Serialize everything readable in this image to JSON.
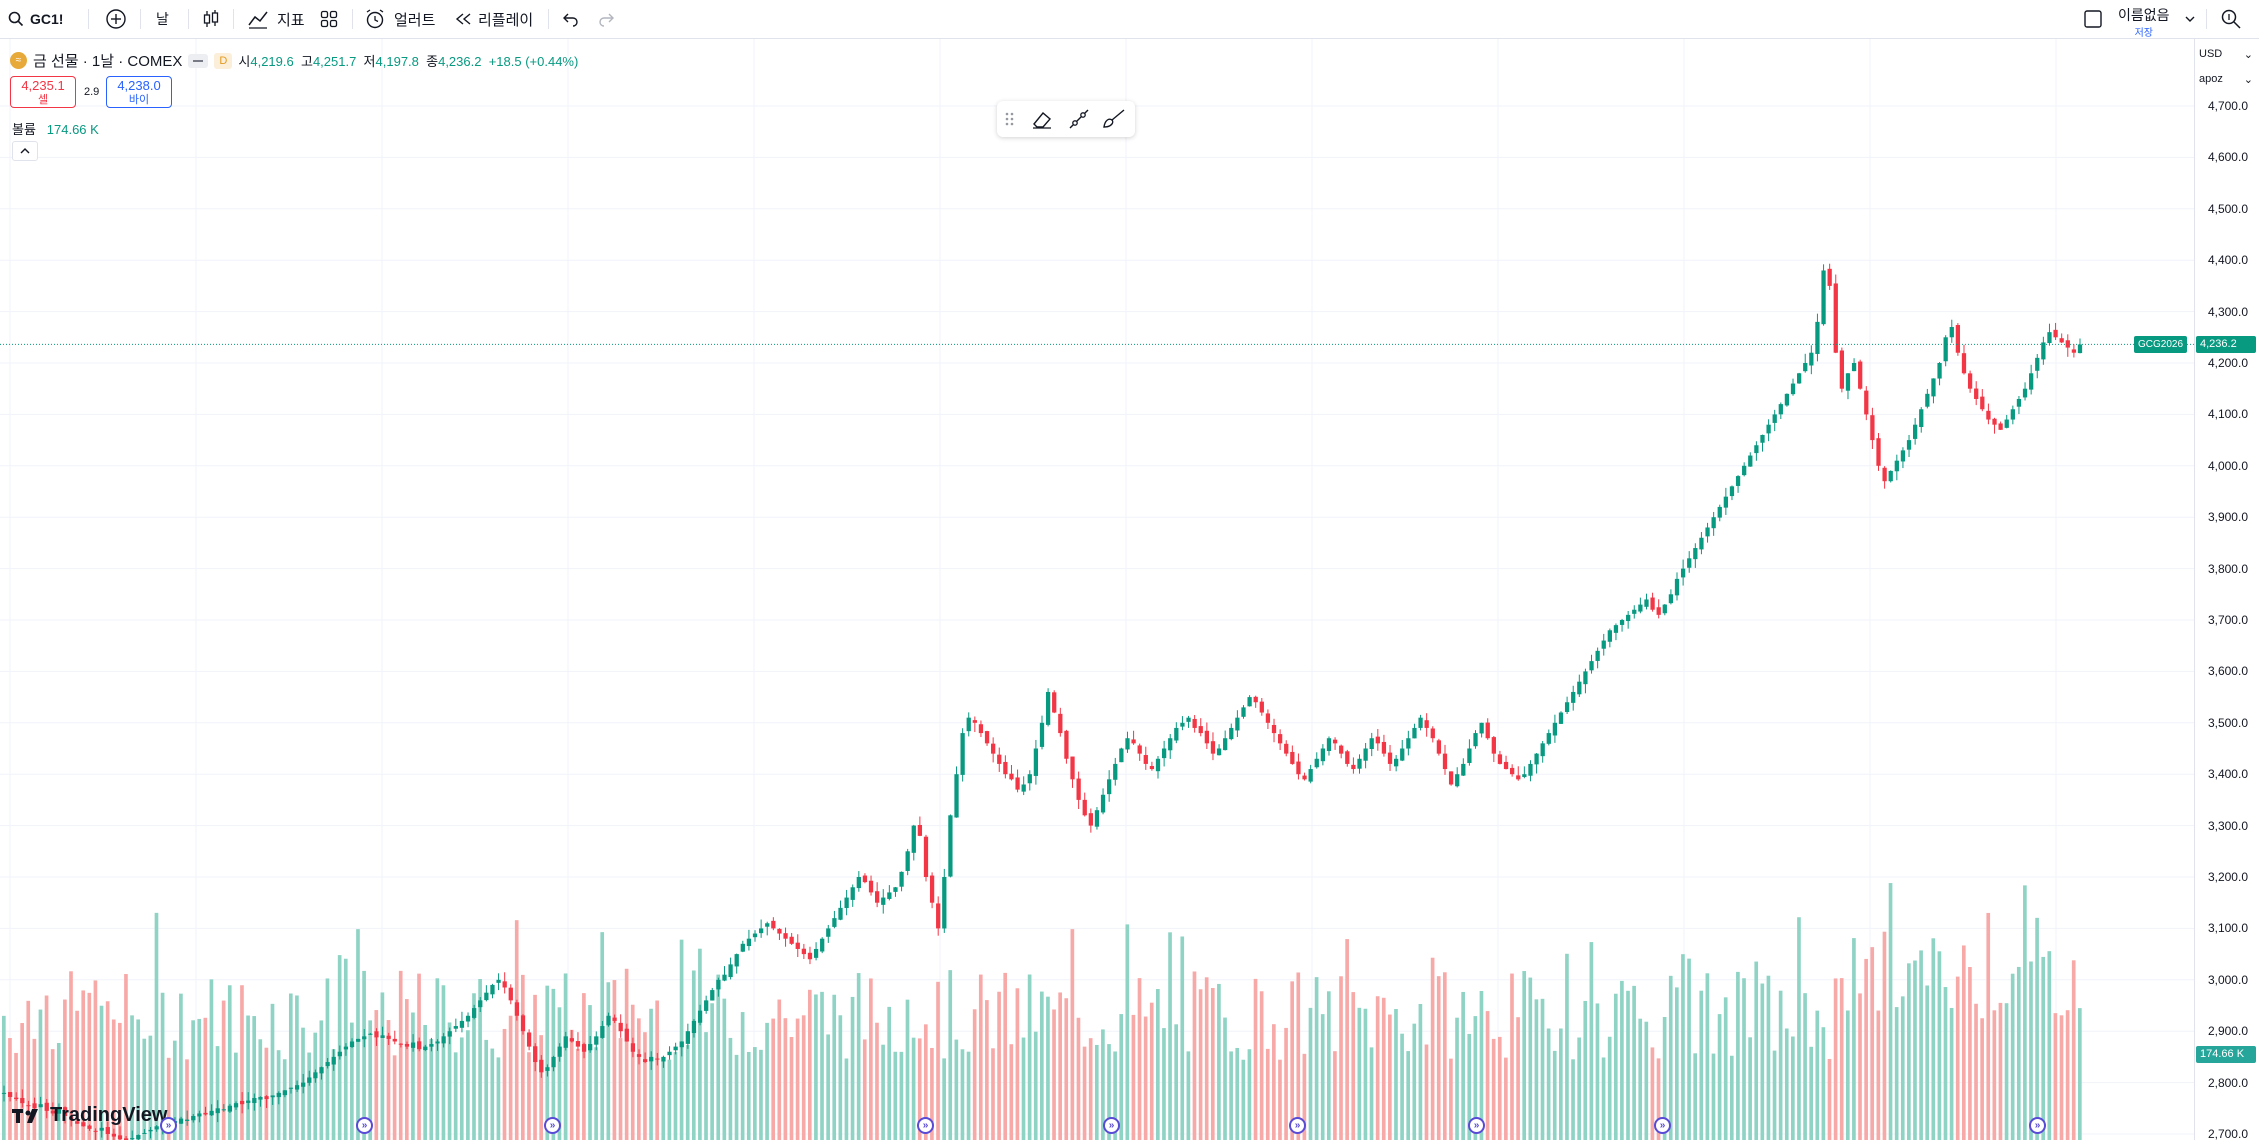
{
  "toolbar": {
    "symbol": "GC1!",
    "interval": "날",
    "indicators_label": "지표",
    "alert_label": "얼러트",
    "replay_label": "리플레이",
    "layout_name": "이름없음",
    "save_label": "저장"
  },
  "legend": {
    "title": "금 선물 · 1날 · COMEX",
    "badge": "D",
    "o_label": "시",
    "o_value": "4,219.6",
    "h_label": "고",
    "h_value": "4,251.7",
    "l_label": "저",
    "l_value": "4,197.8",
    "c_label": "종",
    "c_value": "4,236.2",
    "change": "+18.5 (+0.44%)",
    "sell_price": "4,235.1",
    "sell_label": "셀",
    "spread": "2.9",
    "buy_price": "4,238.0",
    "buy_label": "바이",
    "volume_label": "볼륨",
    "volume_value": "174.66 K"
  },
  "price_scale": {
    "currency": "USD",
    "mode": "apoz",
    "ticks": [
      "4,700.0",
      "4,600.0",
      "4,500.0",
      "4,400.0",
      "4,300.0",
      "4,200.0",
      "4,100.0",
      "4,000.0",
      "3,900.0",
      "3,800.0",
      "3,700.0",
      "3,600.0",
      "3,500.0",
      "3,400.0",
      "3,300.0",
      "3,200.0",
      "3,100.0",
      "3,000.0",
      "2,900.0",
      "2,800.0",
      "2,700.0"
    ],
    "last_price_symbol": "GCG2026",
    "last_price": "4,236.2",
    "volume_tag": "174.66 K"
  },
  "branding": {
    "logo_text": "TradingView"
  },
  "colors": {
    "up": "#089981",
    "down": "#f23645",
    "up_vol": "#8fd3c5",
    "down_vol": "#f7a9a8",
    "accent": "#2962ff"
  },
  "chart_data": {
    "type": "candlestick",
    "timeframe": "1D",
    "ylim": [
      2700,
      4750
    ],
    "last_price": 4236.2,
    "close_series": [
      2780,
      2772,
      2768,
      2760,
      2755,
      2750,
      2758,
      2745,
      2740,
      2748,
      2735,
      2728,
      2720,
      2715,
      2710,
      2705,
      2712,
      2700,
      2695,
      2690,
      2688,
      2692,
      2698,
      2702,
      2708,
      2715,
      2720,
      2718,
      2725,
      2730,
      2728,
      2735,
      2740,
      2738,
      2745,
      2750,
      2748,
      2755,
      2760,
      2758,
      2765,
      2770,
      2772,
      2768,
      2775,
      2780,
      2785,
      2790,
      2795,
      2800,
      2810,
      2820,
      2830,
      2840,
      2850,
      2860,
      2870,
      2880,
      2885,
      2890,
      2895,
      2888,
      2892,
      2885,
      2880,
      2875,
      2870,
      2878,
      2865,
      2870,
      2875,
      2880,
      2890,
      2900,
      2910,
      2920,
      2930,
      2945,
      2960,
      2975,
      2990,
      3000,
      2985,
      2960,
      2930,
      2900,
      2870,
      2840,
      2820,
      2830,
      2850,
      2870,
      2890,
      2880,
      2870,
      2860,
      2875,
      2890,
      2910,
      2930,
      2920,
      2900,
      2880,
      2860,
      2850,
      2840,
      2850,
      2845,
      2850,
      2860,
      2870,
      2880,
      2900,
      2920,
      2940,
      2960,
      2980,
      3000,
      3010,
      3030,
      3050,
      3070,
      3080,
      3090,
      3100,
      3110,
      3100,
      3090,
      3080,
      3070,
      3060,
      3050,
      3040,
      3060,
      3080,
      3100,
      3120,
      3140,
      3160,
      3180,
      3200,
      3190,
      3170,
      3150,
      3160,
      3170,
      3180,
      3210,
      3250,
      3300,
      3280,
      3200,
      3150,
      3100,
      3200,
      3320,
      3400,
      3480,
      3510,
      3500,
      3480,
      3460,
      3440,
      3420,
      3400,
      3390,
      3370,
      3380,
      3400,
      3450,
      3500,
      3560,
      3520,
      3480,
      3430,
      3390,
      3350,
      3320,
      3300,
      3330,
      3360,
      3390,
      3420,
      3450,
      3470,
      3460,
      3440,
      3420,
      3410,
      3430,
      3450,
      3470,
      3490,
      3500,
      3510,
      3490,
      3480,
      3460,
      3440,
      3450,
      3470,
      3490,
      3510,
      3530,
      3550,
      3540,
      3520,
      3500,
      3480,
      3460,
      3440,
      3420,
      3400,
      3390,
      3410,
      3430,
      3450,
      3470,
      3460,
      3440,
      3420,
      3410,
      3430,
      3450,
      3470,
      3460,
      3440,
      3420,
      3430,
      3450,
      3470,
      3490,
      3510,
      3490,
      3470,
      3440,
      3410,
      3380,
      3400,
      3420,
      3450,
      3480,
      3500,
      3470,
      3440,
      3420,
      3410,
      3400,
      3390,
      3400,
      3420,
      3440,
      3460,
      3480,
      3500,
      3520,
      3540,
      3560,
      3580,
      3600,
      3620,
      3640,
      3660,
      3680,
      3690,
      3700,
      3710,
      3720,
      3730,
      3740,
      3720,
      3710,
      3730,
      3750,
      3780,
      3800,
      3820,
      3840,
      3860,
      3880,
      3900,
      3920,
      3940,
      3960,
      3980,
      4000,
      4020,
      4040,
      4060,
      4080,
      4100,
      4120,
      4140,
      4160,
      4180,
      4200,
      4220,
      4280,
      4380,
      4350,
      4220,
      4150,
      4180,
      4200,
      4150,
      4100,
      4050,
      4000,
      3970,
      3990,
      4010,
      4030,
      4050,
      4080,
      4110,
      4140,
      4170,
      4200,
      4250,
      4270,
      4220,
      4180,
      4150,
      4130,
      4110,
      4090,
      4080,
      4070,
      4090,
      4110,
      4130,
      4150,
      4180,
      4210,
      4240,
      4260,
      4250,
      4240,
      4230,
      4220,
      4236
    ]
  }
}
